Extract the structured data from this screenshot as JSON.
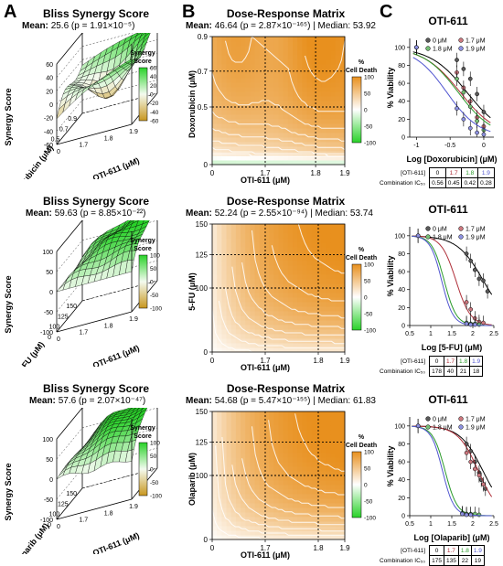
{
  "panel_letters": {
    "a": "A",
    "b": "B",
    "c": "C"
  },
  "colors": {
    "orange": "#e8901e",
    "white": "#ffffff",
    "green": "#28d228",
    "gold": "#c8961e",
    "conc_colors": [
      "#000000",
      "#b0303a",
      "#2a9a2a",
      "#5055d0"
    ]
  },
  "colorbar_labels": {
    "synergy": "Synergy\nScore",
    "cell_death": "%\nCell Death"
  },
  "surfaces": [
    {
      "title": "Bliss Synergy Score",
      "mean_label": "Mean:",
      "mean_text": "25.6 (p = 1.91×10⁻⁵)",
      "zlabel": "Synergy Score",
      "ylabel": "Doxorubicin (μM)",
      "xlabel": "OTI-611 (μM)",
      "zticks": [
        "60",
        "40",
        "20",
        "0",
        "-20",
        "-40",
        "-60"
      ],
      "colorbar_ticks": [
        "60",
        "40",
        "20",
        "0",
        "-20",
        "-40",
        "-60"
      ],
      "yticks": [
        "0.9",
        "0.7",
        "0.5",
        "0"
      ],
      "xticks": [
        "0",
        "1.7",
        "1.8",
        "1.9"
      ]
    },
    {
      "title": "Bliss Synergy Score",
      "mean_label": "Mean:",
      "mean_text": "59.63 (p = 8.85×10⁻²²)",
      "zlabel": "Synergy Score",
      "ylabel": "5-FU (μM)",
      "xlabel": "OTI-611 (μM)",
      "zticks": [
        "100",
        "50",
        "0",
        "-50",
        "-100"
      ],
      "colorbar_ticks": [
        "100",
        "50",
        "0",
        "-50",
        "-100"
      ],
      "yticks": [
        "150",
        "125",
        "100",
        "0"
      ],
      "xticks": [
        "0",
        "1.7",
        "1.8",
        "1.9"
      ]
    },
    {
      "title": "Bliss Synergy Score",
      "mean_label": "Mean:",
      "mean_text": "57.6 (p = 2.07×10⁻⁴⁷)",
      "zlabel": "Synergy Score",
      "ylabel": "Olaparib (μM)",
      "xlabel": "OTI-611 (μM)",
      "zticks": [
        "100",
        "50",
        "0",
        "-50",
        "-100"
      ],
      "colorbar_ticks": [
        "100",
        "50",
        "0",
        "-50",
        "-100"
      ],
      "yticks": [
        "150",
        "125",
        "100",
        "0"
      ],
      "xticks": [
        "0",
        "1.7",
        "1.8",
        "1.9"
      ]
    }
  ],
  "matrices": [
    {
      "title": "Dose-Response Matrix",
      "mean_label": "Mean:",
      "mean_text": "46.64 (p = 2.87×10⁻¹⁶⁵) | Median: 53.92",
      "ylabel": "Doxorubicin (μM)",
      "xlabel": "OTI-611 (μM)",
      "xticks": [
        "0",
        "1.7",
        "1.8",
        "1.9"
      ],
      "yticks": [
        "0",
        "0.5",
        "0.7",
        "0.9"
      ],
      "colorbar_ticks": [
        "100",
        "50",
        "0",
        "-50",
        "-100"
      ]
    },
    {
      "title": "Dose-Response Matrix",
      "mean_label": "Mean:",
      "mean_text": "52.24 (p = 2.55×10⁻⁹⁴) | Median: 53.74",
      "ylabel": "5-FU (μM)",
      "xlabel": "OTI-611 (μM)",
      "xticks": [
        "0",
        "1.7",
        "1.8",
        "1.9"
      ],
      "yticks": [
        "0",
        "100",
        "125",
        "150"
      ],
      "colorbar_ticks": [
        "100",
        "50",
        "0",
        "-50",
        "-100"
      ]
    },
    {
      "title": "Dose-Response Matrix",
      "mean_label": "Mean:",
      "mean_text": "54.68 (p = 5.47×10⁻¹⁵⁵) | Median: 61.83",
      "ylabel": "Olaparib (μM)",
      "xlabel": "OTI-611 (μM)",
      "xticks": [
        "0",
        "1.7",
        "1.8",
        "1.9"
      ],
      "yticks": [
        "0",
        "100",
        "125",
        "150"
      ],
      "colorbar_ticks": [
        "100",
        "50",
        "0",
        "-50",
        "-100"
      ]
    }
  ],
  "curves": [
    {
      "title": "OTI-611",
      "ylabel": "% Viability",
      "xlabel": "Log [Doxorubicin] (μM)",
      "legend": [
        "0 μM",
        "1.7 μM",
        "1.8 μM",
        "1.9 μM"
      ],
      "yticks": [
        "100",
        "80",
        "60",
        "40",
        "20",
        "0"
      ],
      "xticks": [
        "-1",
        "-0.5",
        "0"
      ],
      "ic50_header": "[OTI-611]",
      "ic50_label": "Combination IC₅₀",
      "ic50_conc": [
        "0",
        "1.7",
        "1.8",
        "1.9"
      ],
      "ic50_values": [
        "0.56",
        "0.45",
        "0.42",
        "0.28"
      ]
    },
    {
      "title": "OTI-611",
      "ylabel": "% Viability",
      "xlabel": "Log [5-FU] (μM)",
      "legend": [
        "0 μM",
        "1.7 μM",
        "1.8 μM",
        "1.9 μM"
      ],
      "yticks": [
        "100",
        "80",
        "60",
        "40",
        "20",
        "0"
      ],
      "xticks": [
        "0.5",
        "1",
        "1.5",
        "2",
        "2.5"
      ],
      "ic50_header": "[OTI-611]",
      "ic50_label": "Combination IC₅₀",
      "ic50_conc": [
        "0",
        "1.7",
        "1.8",
        "1.9"
      ],
      "ic50_values": [
        "178",
        "40",
        "21",
        "18"
      ]
    },
    {
      "title": "OTI-611",
      "ylabel": "% Viability",
      "xlabel": "Log [Olaparib] (μM)",
      "legend": [
        "0 μM",
        "1.7 μM",
        "1.8 μM",
        "1.9 μM"
      ],
      "yticks": [
        "100",
        "80",
        "60",
        "40",
        "20",
        "0"
      ],
      "xticks": [
        "0.5",
        "1",
        "1.5",
        "2",
        "2.5"
      ],
      "ic50_header": "[OTI-611]",
      "ic50_label": "Combination IC₅₀",
      "ic50_conc": [
        "0",
        "1.7",
        "1.8",
        "1.9"
      ],
      "ic50_values": [
        "175",
        "135",
        "22",
        "19"
      ]
    }
  ],
  "chart_data": [
    {
      "type": "surface3d",
      "row": 1,
      "score": "Bliss synergy",
      "mean": 25.6,
      "zlim": [
        -60,
        60
      ]
    },
    {
      "type": "heatmap",
      "row": 1,
      "metric": "% cell death",
      "mean": 46.64,
      "median": 53.92,
      "clim": [
        -100,
        100
      ]
    },
    {
      "type": "line",
      "row": 1,
      "x_domain": [
        -1.1,
        0.15
      ],
      "ylim": [
        0,
        110
      ],
      "series": [
        {
          "name": "0 μM",
          "logIC50": -0.25,
          "hill": 1.6,
          "points": [
            [
              -1,
              100
            ],
            [
              -0.4,
              86
            ],
            [
              -0.3,
              76
            ],
            [
              -0.2,
              65
            ],
            [
              -0.1,
              48
            ],
            [
              0,
              28
            ]
          ]
        },
        {
          "name": "1.7 μM",
          "logIC50": -0.35,
          "hill": 1.6,
          "points": [
            [
              -1,
              100
            ],
            [
              -0.4,
              72
            ],
            [
              -0.3,
              55
            ],
            [
              -0.2,
              40
            ],
            [
              -0.1,
              22
            ],
            [
              0,
              12
            ]
          ]
        },
        {
          "name": "1.8 μM",
          "logIC50": -0.38,
          "hill": 1.7,
          "points": [
            [
              -1,
              100
            ],
            [
              -0.4,
              65
            ],
            [
              -0.3,
              50
            ],
            [
              -0.2,
              34
            ],
            [
              -0.1,
              18
            ],
            [
              0,
              8
            ]
          ]
        },
        {
          "name": "1.9 μM",
          "logIC50": -0.55,
          "hill": 1.8,
          "points": [
            [
              -1,
              100
            ],
            [
              -0.4,
              32
            ],
            [
              -0.3,
              20
            ],
            [
              -0.2,
              10
            ],
            [
              -0.1,
              5
            ],
            [
              0,
              3
            ]
          ]
        }
      ]
    },
    {
      "type": "surface3d",
      "row": 2,
      "score": "Bliss synergy",
      "mean": 59.63,
      "zlim": [
        -100,
        100
      ]
    },
    {
      "type": "heatmap",
      "row": 2,
      "metric": "% cell death",
      "mean": 52.24,
      "median": 53.74,
      "clim": [
        -100,
        100
      ]
    },
    {
      "type": "line",
      "row": 2,
      "x_domain": [
        0.5,
        2.5
      ],
      "ylim": [
        0,
        110
      ],
      "series": [
        {
          "name": "0 μM",
          "logIC50": 2.25,
          "hill": 1.4,
          "points": [
            [
              0.7,
              100
            ],
            [
              1.85,
              80
            ],
            [
              1.95,
              72
            ],
            [
              2.05,
              62
            ],
            [
              2.15,
              52
            ],
            [
              2.25,
              50
            ],
            [
              2.35,
              38
            ]
          ]
        },
        {
          "name": "1.7 μM",
          "logIC50": 1.6,
          "hill": 2.5,
          "points": [
            [
              0.7,
              100
            ],
            [
              1.85,
              26
            ],
            [
              1.95,
              18
            ],
            [
              2.05,
              8
            ],
            [
              2.15,
              4
            ],
            [
              2.25,
              3
            ]
          ]
        },
        {
          "name": "1.8 μM",
          "logIC50": 1.32,
          "hill": 3.0,
          "points": [
            [
              0.7,
              100
            ],
            [
              1.85,
              3
            ],
            [
              1.95,
              2
            ],
            [
              2.05,
              2
            ],
            [
              2.15,
              1
            ]
          ]
        },
        {
          "name": "1.9 μM",
          "logIC50": 1.26,
          "hill": 3.2,
          "points": [
            [
              0.7,
              100
            ],
            [
              1.85,
              2
            ],
            [
              1.95,
              1
            ],
            [
              2.05,
              1
            ]
          ]
        }
      ]
    },
    {
      "type": "surface3d",
      "row": 3,
      "score": "Bliss synergy",
      "mean": 57.6,
      "zlim": [
        -100,
        100
      ]
    },
    {
      "type": "heatmap",
      "row": 3,
      "metric": "% cell death",
      "mean": 54.68,
      "median": 61.83,
      "clim": [
        -100,
        100
      ]
    },
    {
      "type": "line",
      "row": 3,
      "x_domain": [
        0.5,
        2.5
      ],
      "ylim": [
        0,
        110
      ],
      "series": [
        {
          "name": "0 μM",
          "logIC50": 2.24,
          "hill": 1.6,
          "points": [
            [
              0.7,
              100
            ],
            [
              1.85,
              80
            ],
            [
              1.95,
              72
            ],
            [
              2.05,
              60
            ],
            [
              2.15,
              48
            ],
            [
              2.2,
              40
            ],
            [
              2.3,
              30
            ]
          ]
        },
        {
          "name": "1.7 μM",
          "logIC50": 2.13,
          "hill": 1.8,
          "points": [
            [
              0.7,
              100
            ],
            [
              1.85,
              70
            ],
            [
              1.95,
              60
            ],
            [
              2.05,
              52
            ],
            [
              2.15,
              45
            ],
            [
              2.25,
              35
            ]
          ]
        },
        {
          "name": "1.8 μM",
          "logIC50": 1.34,
          "hill": 3.0,
          "points": [
            [
              0.7,
              100
            ],
            [
              1.75,
              3
            ],
            [
              1.85,
              2
            ],
            [
              1.95,
              2
            ],
            [
              2.05,
              2
            ],
            [
              2.15,
              1
            ]
          ]
        },
        {
          "name": "1.9 μM",
          "logIC50": 1.28,
          "hill": 3.2,
          "points": [
            [
              0.7,
              100
            ],
            [
              1.75,
              2
            ],
            [
              1.85,
              1
            ],
            [
              1.95,
              1
            ]
          ]
        }
      ]
    }
  ]
}
